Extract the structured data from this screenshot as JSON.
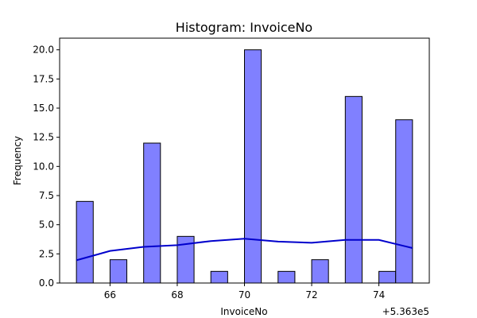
{
  "chart_data": {
    "type": "bar",
    "title": "Histogram: InvoiceNo",
    "xlabel": "InvoiceNo",
    "ylabel": "Frequency",
    "x_offset_label": "+5.363e5",
    "xlim": [
      64.5,
      75.5
    ],
    "ylim": [
      0,
      21
    ],
    "x_ticks": [
      66,
      68,
      70,
      72,
      74
    ],
    "y_ticks": [
      0,
      2.5,
      5,
      7.5,
      10,
      12.5,
      15,
      17.5,
      20
    ],
    "x_tick_labels": [
      "66",
      "68",
      "70",
      "72",
      "74"
    ],
    "y_tick_labels": [
      "0.0",
      "2.5",
      "5.0",
      "7.5",
      "10.0",
      "12.5",
      "15.0",
      "17.5",
      "20.0"
    ],
    "bins": [
      {
        "x0": 65.0,
        "x1": 65.5,
        "count": 7
      },
      {
        "x0": 66.0,
        "x1": 66.5,
        "count": 2
      },
      {
        "x0": 67.0,
        "x1": 67.5,
        "count": 12
      },
      {
        "x0": 68.0,
        "x1": 68.5,
        "count": 4
      },
      {
        "x0": 69.0,
        "x1": 69.5,
        "count": 1
      },
      {
        "x0": 70.0,
        "x1": 70.5,
        "count": 20
      },
      {
        "x0": 71.0,
        "x1": 71.5,
        "count": 1
      },
      {
        "x0": 72.0,
        "x1": 72.5,
        "count": 2
      },
      {
        "x0": 73.0,
        "x1": 73.5,
        "count": 16
      },
      {
        "x0": 74.0,
        "x1": 74.5,
        "count": 1
      },
      {
        "x0": 74.5,
        "x1": 75.0,
        "count": 14
      }
    ],
    "kde": {
      "x": [
        65.0,
        66.0,
        67.0,
        68.0,
        69.0,
        70.0,
        71.0,
        72.0,
        73.0,
        74.0,
        75.0
      ],
      "y": [
        1.95,
        2.75,
        3.1,
        3.25,
        3.6,
        3.8,
        3.55,
        3.45,
        3.7,
        3.7,
        3.0
      ]
    },
    "grid": false,
    "bar_color": "#8080ff",
    "bar_edge_color": "#000000",
    "kde_color": "#0000cc"
  }
}
